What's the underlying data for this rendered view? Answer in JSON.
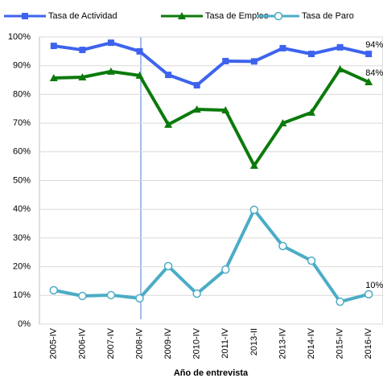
{
  "chart_data": {
    "type": "line",
    "x_label": "Año de entrevista",
    "categories": [
      "2005-IV",
      "2006-IV",
      "2007-IV",
      "2008-IV",
      "2009-IV",
      "2010-IV",
      "2011-IV",
      "2013-II",
      "2013-IV",
      "2014-IV",
      "2015-IV",
      "2016-IV"
    ],
    "series": [
      {
        "name": "Tasa de Actividad",
        "color": "#3d63ee",
        "marker": "square",
        "values": [
          96.9,
          95.5,
          98.0,
          95.0,
          86.8,
          83.2,
          91.6,
          91.5,
          96.1,
          94.1,
          96.4,
          94.1
        ],
        "value_labels": [
          null,
          null,
          null,
          null,
          null,
          null,
          null,
          null,
          null,
          null,
          null,
          "94%"
        ]
      },
      {
        "name": "Tasa de Empleo",
        "color": "#0b7a0b",
        "marker": "triangle",
        "values": [
          85.7,
          86.0,
          88.0,
          86.6,
          69.5,
          74.8,
          74.5,
          55.2,
          70.0,
          73.7,
          88.8,
          84.3
        ],
        "value_labels": [
          null,
          null,
          null,
          null,
          null,
          null,
          null,
          null,
          null,
          null,
          null,
          "84%"
        ]
      },
      {
        "name": "Tasa de Paro",
        "color": "#4bacc6",
        "marker": "circle",
        "values": [
          11.8,
          9.8,
          10.1,
          9.0,
          20.2,
          10.6,
          19.0,
          39.8,
          27.2,
          22.1,
          7.8,
          10.4
        ],
        "value_labels": [
          null,
          null,
          null,
          null,
          null,
          null,
          null,
          null,
          null,
          null,
          null,
          "10%"
        ]
      }
    ],
    "ylim": [
      0,
      100
    ],
    "yticks": [
      {
        "value": 0,
        "label": "0%"
      },
      {
        "value": 10,
        "label": "10%"
      },
      {
        "value": 20,
        "label": "20%"
      },
      {
        "value": 30,
        "label": "30%"
      },
      {
        "value": 40,
        "label": "40%"
      },
      {
        "value": 50,
        "label": "50%"
      },
      {
        "value": 60,
        "label": "60%"
      },
      {
        "value": 70,
        "label": "70%"
      },
      {
        "value": 80,
        "label": "80%"
      },
      {
        "value": 90,
        "label": "90%"
      },
      {
        "value": 100,
        "label": "100%"
      }
    ],
    "grid": true,
    "legend": "top"
  }
}
